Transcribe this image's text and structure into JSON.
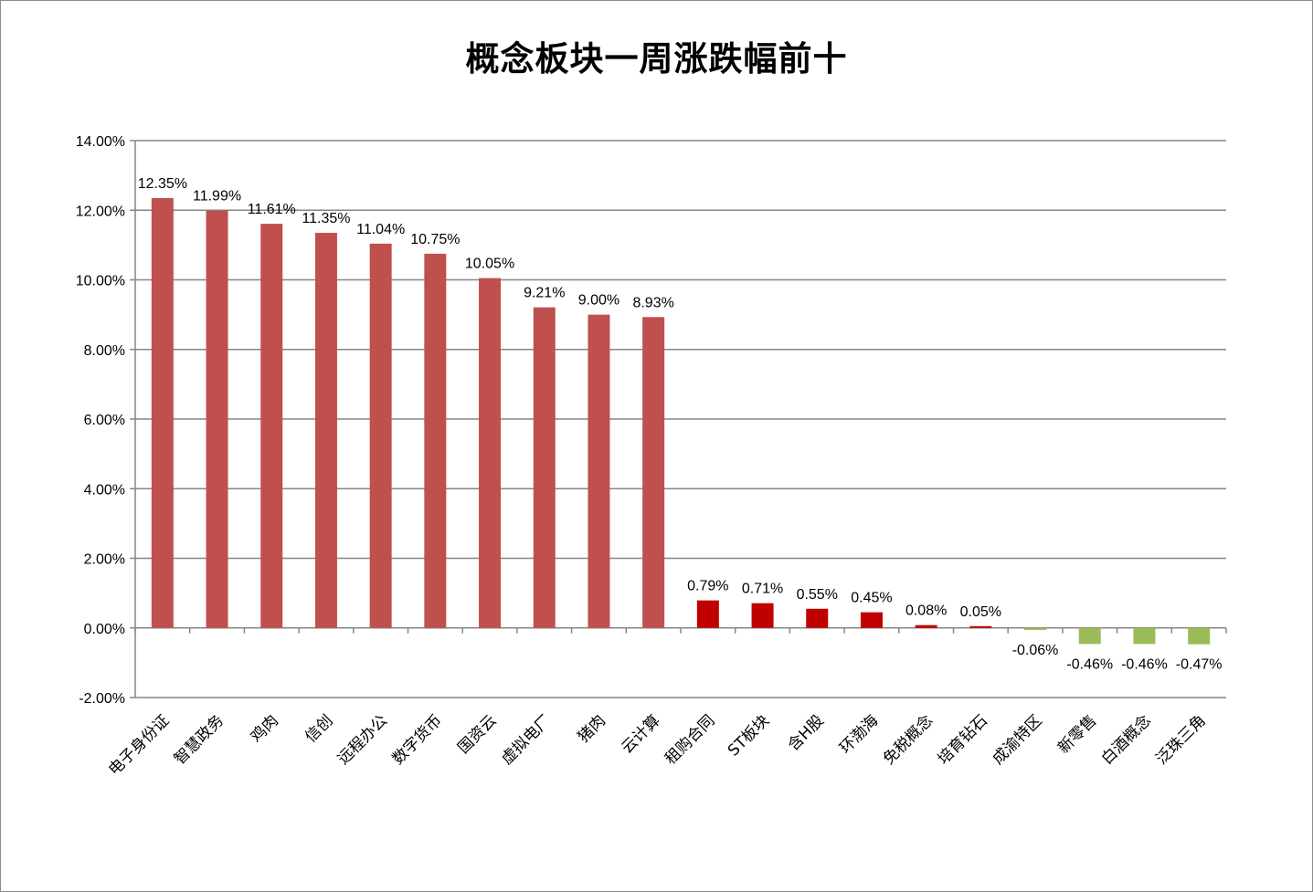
{
  "chart_data": {
    "type": "bar",
    "title": "概念板块一周涨跌幅前十",
    "xlabel": "",
    "ylabel": "",
    "ylim": [
      -2,
      14
    ],
    "yticks": [
      "-2.00%",
      "0.00%",
      "2.00%",
      "4.00%",
      "6.00%",
      "8.00%",
      "10.00%",
      "12.00%",
      "14.00%"
    ],
    "ytick_values": [
      -2,
      0,
      2,
      4,
      6,
      8,
      10,
      12,
      14
    ],
    "grid": "horizontal",
    "legend": "none",
    "categories": [
      "电子身份证",
      "智慧政务",
      "鸡肉",
      "信创",
      "远程办公",
      "数字货币",
      "国资云",
      "虚拟电厂",
      "猪肉",
      "云计算",
      "租购合同",
      "ST板块",
      "含H股",
      "环渤海",
      "免税概念",
      "培育钻石",
      "成渝特区",
      "新零售",
      "白酒概念",
      "泛珠三角"
    ],
    "values": [
      12.35,
      11.99,
      11.61,
      11.35,
      11.04,
      10.75,
      10.05,
      9.21,
      9.0,
      8.93,
      0.79,
      0.71,
      0.55,
      0.45,
      0.08,
      0.05,
      -0.06,
      -0.46,
      -0.46,
      -0.47
    ],
    "labels": [
      "12.35%",
      "11.99%",
      "11.61%",
      "11.35%",
      "11.04%",
      "10.75%",
      "10.05%",
      "9.21%",
      "9.00%",
      "8.93%",
      "0.79%",
      "0.71%",
      "0.55%",
      "0.45%",
      "0.08%",
      "0.05%",
      "-0.06%",
      "-0.46%",
      "-0.46%",
      "-0.47%"
    ],
    "colors": {
      "top_gainers": "#c0504d",
      "gainers": "#c00000",
      "losers": "#9bbb59",
      "grid": "#868686",
      "axis": "#868686"
    },
    "color_groups": [
      "top_gainers",
      "top_gainers",
      "top_gainers",
      "top_gainers",
      "top_gainers",
      "top_gainers",
      "top_gainers",
      "top_gainers",
      "top_gainers",
      "top_gainers",
      "gainers",
      "gainers",
      "gainers",
      "gainers",
      "gainers",
      "gainers",
      "losers",
      "losers",
      "losers",
      "losers"
    ]
  }
}
